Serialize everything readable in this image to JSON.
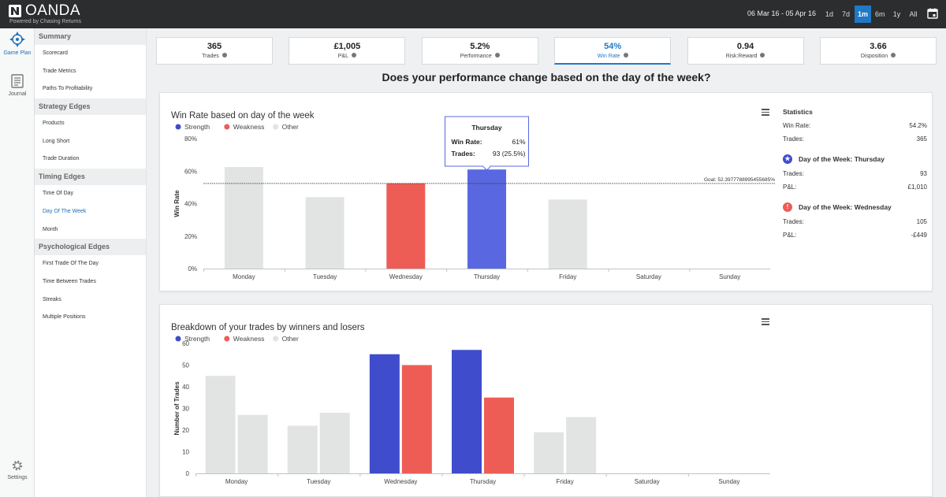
{
  "app": {
    "name": "OANDA",
    "subtitle": "Powered by Chasing Returns",
    "date_range": "06 Mar 16  -  05 Apr 16",
    "ranges": [
      {
        "label": "1d",
        "active": false
      },
      {
        "label": "7d",
        "active": false
      },
      {
        "label": "1m",
        "active": true
      },
      {
        "label": "6m",
        "active": false
      },
      {
        "label": "1y",
        "active": false
      },
      {
        "label": "All",
        "active": false
      }
    ]
  },
  "rail": {
    "game_plan": "Game Plan",
    "journal": "Journal",
    "settings": "Settings"
  },
  "sidebar": {
    "sections": [
      {
        "title": "Summary",
        "items": [
          "Scorecard",
          "Trade Metrics",
          "Paths To Profitability"
        ]
      },
      {
        "title": "Strategy Edges",
        "items": [
          "Products",
          "Long Short",
          "Trade Duration"
        ]
      },
      {
        "title": "Timing Edges",
        "items": [
          "Time Of Day",
          "Day Of The Week",
          "Month"
        ]
      },
      {
        "title": "Psychological Edges",
        "items": [
          "First Trade Of The Day",
          "Time Between Trades",
          "Streaks",
          "Multiple Positions"
        ]
      }
    ],
    "active_item": "Day Of The Week"
  },
  "metrics": [
    {
      "value": "365",
      "label": "Trades",
      "active": false
    },
    {
      "value": "£1,005",
      "label": "P&L",
      "active": false
    },
    {
      "value": "5.2%",
      "label": "Performance",
      "active": false
    },
    {
      "value": "54%",
      "label": "Win Rate",
      "active": true
    },
    {
      "value": "0.94",
      "label": "Risk:Reward",
      "active": false
    },
    {
      "value": "3.66",
      "label": "Disposition",
      "active": false
    }
  ],
  "question": "Does your performance change based on the day of the week?",
  "colors": {
    "strength": "#3f4ccb",
    "weakness": "#ee5d55",
    "other": "#e2e4e4",
    "strength_highlight": "#5968e0",
    "accent": "#1f79c7"
  },
  "legend": {
    "strength": "Strength",
    "weakness": "Weakness",
    "other": "Other"
  },
  "chart_data": [
    {
      "type": "bar",
      "title": "Win Rate based on day of the week",
      "ylabel": "Win Rate",
      "xlabel": "",
      "categories": [
        "Monday",
        "Tuesday",
        "Wednesday",
        "Thursday",
        "Friday",
        "Saturday",
        "Sunday"
      ],
      "values": [
        62.5,
        44,
        52.5,
        61,
        42.5,
        null,
        null
      ],
      "classes": [
        "other",
        "other",
        "weakness",
        "strength",
        "other",
        null,
        null
      ],
      "ylim": [
        0,
        80
      ],
      "yticks": [
        "0%",
        "20%",
        "40%",
        "60%",
        "80%"
      ],
      "goal": {
        "value": 52.3977788995,
        "label": "Goal: 52.3977788995455685%"
      },
      "tooltip": {
        "title": "Thursday",
        "rows": [
          {
            "label": "Win Rate:",
            "value": "61%"
          },
          {
            "label": "Trades:",
            "value": "93 (25.5%)"
          }
        ]
      },
      "legend_position": "top-left",
      "grid": false
    },
    {
      "type": "bar",
      "title": "Breakdown of your trades by winners and losers",
      "ylabel": "Number of Trades",
      "xlabel": "",
      "categories": [
        "Monday",
        "Tuesday",
        "Wednesday",
        "Thursday",
        "Friday",
        "Saturday",
        "Sunday"
      ],
      "series": [
        {
          "values": [
            45,
            22,
            55,
            57,
            19,
            null,
            null
          ],
          "classes": [
            "other",
            "other",
            "strength",
            "strength",
            "other",
            null,
            null
          ]
        },
        {
          "values": [
            27,
            28,
            50,
            35,
            26,
            null,
            null
          ],
          "classes": [
            "other",
            "other",
            "weakness",
            "weakness",
            "other",
            null,
            null
          ]
        }
      ],
      "ylim": [
        0,
        60
      ],
      "yticks": [
        "0",
        "10",
        "20",
        "30",
        "40",
        "50",
        "60"
      ],
      "legend_position": "top-left",
      "grid": false
    }
  ],
  "statistics": {
    "title": "Statistics",
    "win_rate_label": "Win Rate:",
    "win_rate": "54.2%",
    "trades_label": "Trades:",
    "trades": "365",
    "best": {
      "heading": "Day of the Week: Thursday",
      "trades_label": "Trades:",
      "trades": "93",
      "pl_label": "P&L:",
      "pl": "£1,010"
    },
    "worst": {
      "heading": "Day of the Week: Wednesday",
      "trades_label": "Trades:",
      "trades": "105",
      "pl_label": "P&L:",
      "pl": "-£449"
    }
  }
}
